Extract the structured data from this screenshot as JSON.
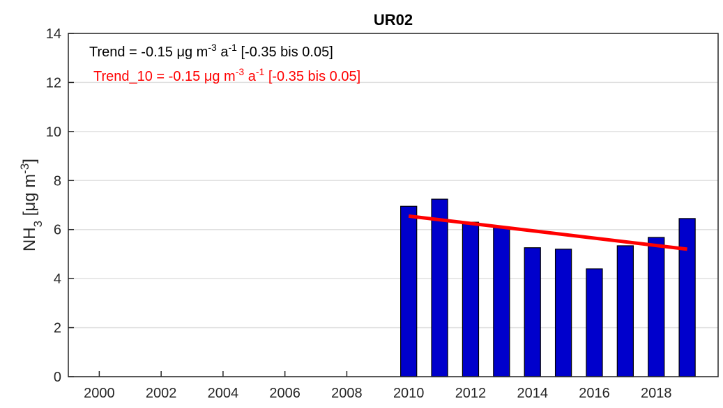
{
  "chart_data": {
    "type": "bar",
    "title": "UR02",
    "y_label": [
      "NH",
      "3",
      " [",
      "μg m",
      "-3",
      "]"
    ],
    "annotations": [
      {
        "parts": [
          "Trend = -0.15 ",
          "μg m",
          "-3",
          " a",
          "-1",
          " [-0.35 bis 0.05]"
        ],
        "color": "#000000"
      },
      {
        "parts": [
          "Trend_10 = -0.15 ",
          "μg m",
          "-3",
          " a",
          "-1",
          " [-0.35 bis 0.05]"
        ],
        "color": "#ff0000"
      }
    ],
    "x": [
      2010,
      2011,
      2012,
      2013,
      2014,
      2015,
      2016,
      2017,
      2018,
      2019
    ],
    "values": [
      6.95,
      7.24,
      6.3,
      6.1,
      5.26,
      5.2,
      4.4,
      5.34,
      5.68,
      6.45
    ],
    "color": "#0000cc",
    "trend": {
      "x": [
        2010,
        2019
      ],
      "values": [
        6.55,
        5.2
      ],
      "color": "#ff0000"
    },
    "xlim": [
      1999,
      2020
    ],
    "xticks": [
      2000,
      2002,
      2004,
      2006,
      2008,
      2010,
      2012,
      2014,
      2016,
      2018
    ],
    "ylim": [
      0,
      14
    ],
    "yticks": [
      0,
      2,
      4,
      6,
      8,
      10,
      12,
      14
    ],
    "grid": true
  }
}
